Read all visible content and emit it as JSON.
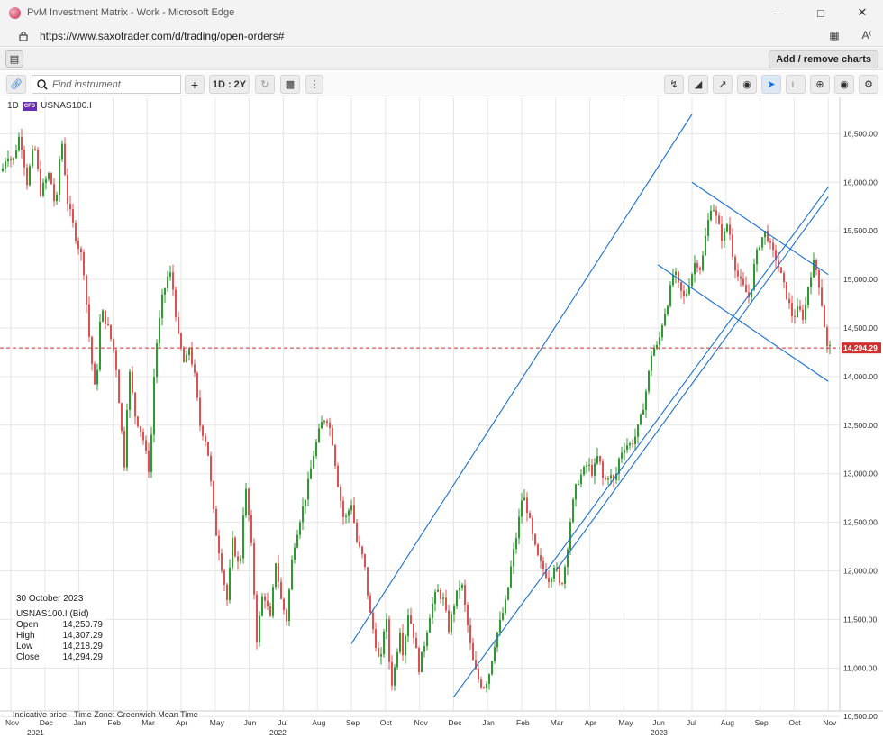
{
  "window": {
    "title": "PvM Investment Matrix - Work - Microsoft Edge"
  },
  "address": {
    "url": "https://www.saxotrader.com/d/trading/open-orders#"
  },
  "toolbar": {
    "add_remove_label": "Add / remove charts"
  },
  "chart_toolbar": {
    "search_placeholder": "Find instrument",
    "period_label": "1D : 2Y",
    "add_symbol": "+"
  },
  "instrument": {
    "interval": "1D",
    "name": "USNAS100.I",
    "badge": "CFD"
  },
  "price_tag": "14,294.29",
  "ohlc": {
    "date": "30 October 2023",
    "title": "USNAS100.I (Bid)",
    "rows": [
      {
        "label": "Open",
        "value": "14,250.79"
      },
      {
        "label": "High",
        "value": "14,307.29"
      },
      {
        "label": "Low",
        "value": "14,218.29"
      },
      {
        "label": "Close",
        "value": "14,294.29"
      }
    ]
  },
  "footer": {
    "indicative": "Indicative price",
    "timezone": "Time Zone: Greenwich Mean Time"
  },
  "colors": {
    "up": "#2e9b2e",
    "down": "#e05050",
    "trendline": "#1a6fd6",
    "price_line": "#d03030"
  },
  "chart_data": {
    "type": "candlestick",
    "ylim": [
      10400,
      16800
    ],
    "y_ticks": [
      "10,500.00",
      "11,000.00",
      "11,500.00",
      "12,000.00",
      "12,500.00",
      "13,000.00",
      "13,500.00",
      "14,000.00",
      "14,500.00",
      "15,000.00",
      "15,500.00",
      "16,000.00",
      "16,500.00"
    ],
    "x_months": [
      "Nov",
      "Dec",
      "Jan",
      "Feb",
      "Mar",
      "Apr",
      "May",
      "Jun",
      "Jul",
      "Aug",
      "Sep",
      "Oct",
      "Nov",
      "Dec",
      "Jan",
      "Feb",
      "Mar",
      "Apr",
      "May",
      "Jun",
      "Jul",
      "Aug",
      "Sep",
      "Oct",
      "Nov"
    ],
    "x_years": [
      "2021",
      "2022",
      "2023"
    ],
    "last_price": 14294.29,
    "price_path": [
      [
        0,
        16050
      ],
      [
        8,
        16300
      ],
      [
        14,
        16200
      ],
      [
        22,
        16500
      ],
      [
        30,
        16000
      ],
      [
        38,
        16400
      ],
      [
        45,
        15900
      ],
      [
        55,
        16100
      ],
      [
        62,
        15700
      ],
      [
        68,
        16500
      ],
      [
        75,
        15800
      ],
      [
        85,
        15400
      ],
      [
        92,
        15200
      ],
      [
        100,
        14300
      ],
      [
        106,
        13800
      ],
      [
        112,
        14700
      ],
      [
        120,
        14500
      ],
      [
        128,
        14200
      ],
      [
        138,
        13100
      ],
      [
        143,
        14100
      ],
      [
        150,
        13600
      ],
      [
        158,
        13400
      ],
      [
        166,
        13000
      ],
      [
        172,
        14200
      ],
      [
        180,
        14800
      ],
      [
        188,
        15100
      ],
      [
        192,
        14900
      ],
      [
        198,
        14400
      ],
      [
        205,
        14100
      ],
      [
        210,
        14300
      ],
      [
        216,
        14000
      ],
      [
        222,
        13500
      ],
      [
        230,
        13300
      ],
      [
        238,
        12500
      ],
      [
        245,
        12100
      ],
      [
        252,
        11700
      ],
      [
        258,
        12300
      ],
      [
        266,
        12000
      ],
      [
        272,
        12900
      ],
      [
        278,
        12400
      ],
      [
        285,
        11300
      ],
      [
        292,
        11800
      ],
      [
        300,
        11500
      ],
      [
        306,
        12100
      ],
      [
        312,
        11700
      ],
      [
        318,
        11500
      ],
      [
        325,
        12200
      ],
      [
        332,
        12500
      ],
      [
        340,
        12800
      ],
      [
        348,
        13200
      ],
      [
        356,
        13500
      ],
      [
        362,
        13600
      ],
      [
        368,
        13400
      ],
      [
        375,
        12900
      ],
      [
        382,
        12500
      ],
      [
        390,
        12700
      ],
      [
        396,
        12300
      ],
      [
        404,
        12100
      ],
      [
        410,
        11600
      ],
      [
        416,
        11300
      ],
      [
        422,
        11000
      ],
      [
        428,
        11600
      ],
      [
        434,
        10800
      ],
      [
        438,
        11000
      ],
      [
        444,
        11400
      ],
      [
        448,
        11100
      ],
      [
        452,
        11600
      ],
      [
        458,
        11400
      ],
      [
        465,
        11000
      ],
      [
        470,
        11200
      ],
      [
        478,
        11600
      ],
      [
        485,
        11800
      ],
      [
        492,
        11700
      ],
      [
        498,
        11400
      ],
      [
        505,
        11700
      ],
      [
        512,
        11900
      ],
      [
        518,
        11500
      ],
      [
        524,
        11100
      ],
      [
        530,
        10900
      ],
      [
        536,
        10800
      ],
      [
        542,
        10900
      ],
      [
        550,
        11300
      ],
      [
        556,
        11500
      ],
      [
        562,
        11700
      ],
      [
        568,
        12100
      ],
      [
        574,
        12400
      ],
      [
        580,
        12800
      ],
      [
        586,
        12600
      ],
      [
        592,
        12300
      ],
      [
        598,
        12100
      ],
      [
        604,
        12000
      ],
      [
        610,
        11900
      ],
      [
        616,
        12100
      ],
      [
        622,
        11800
      ],
      [
        628,
        12100
      ],
      [
        634,
        12600
      ],
      [
        640,
        12900
      ],
      [
        646,
        13000
      ],
      [
        652,
        13100
      ],
      [
        658,
        13000
      ],
      [
        664,
        13200
      ],
      [
        670,
        12900
      ],
      [
        676,
        13000
      ],
      [
        682,
        12900
      ],
      [
        688,
        13200
      ],
      [
        694,
        13300
      ],
      [
        700,
        13300
      ],
      [
        706,
        13400
      ],
      [
        712,
        13600
      ],
      [
        718,
        13900
      ],
      [
        724,
        14300
      ],
      [
        730,
        14300
      ],
      [
        736,
        14600
      ],
      [
        742,
        14800
      ],
      [
        748,
        15100
      ],
      [
        754,
        14900
      ],
      [
        760,
        14800
      ],
      [
        766,
        15000
      ],
      [
        772,
        15200
      ],
      [
        778,
        15100
      ],
      [
        784,
        15500
      ],
      [
        790,
        15800
      ],
      [
        796,
        15600
      ],
      [
        802,
        15400
      ],
      [
        808,
        15600
      ],
      [
        814,
        15200
      ],
      [
        820,
        15000
      ],
      [
        826,
        14900
      ],
      [
        832,
        14800
      ],
      [
        838,
        15200
      ],
      [
        844,
        15400
      ],
      [
        850,
        15500
      ],
      [
        856,
        15300
      ],
      [
        862,
        15200
      ],
      [
        868,
        15000
      ],
      [
        874,
        14800
      ],
      [
        880,
        14600
      ],
      [
        886,
        14700
      ],
      [
        892,
        14600
      ],
      [
        898,
        15000
      ],
      [
        904,
        15200
      ],
      [
        910,
        14900
      ],
      [
        914,
        14600
      ],
      [
        918,
        14300
      ],
      [
        921,
        14294
      ]
    ],
    "lines": [
      {
        "name": "channel-upper",
        "from": [
          "Sep 2022",
          11250
        ],
        "to": [
          "Jul 2023",
          16700
        ]
      },
      {
        "name": "channel-lower",
        "from": [
          "Dec 2022",
          10700
        ],
        "to": [
          "Nov 2023",
          15950
        ]
      },
      {
        "name": "channel-lower-2",
        "from": [
          "Mar 2023",
          12000
        ],
        "to": [
          "Nov 2023",
          15850
        ]
      },
      {
        "name": "wedge-top",
        "from": [
          "Jul 2023",
          16000
        ],
        "to": [
          "Nov 2023",
          15050
        ]
      },
      {
        "name": "wedge-bottom",
        "from": [
          "Jun 2023",
          15150
        ],
        "to": [
          "Nov 2023",
          13950
        ]
      }
    ]
  }
}
